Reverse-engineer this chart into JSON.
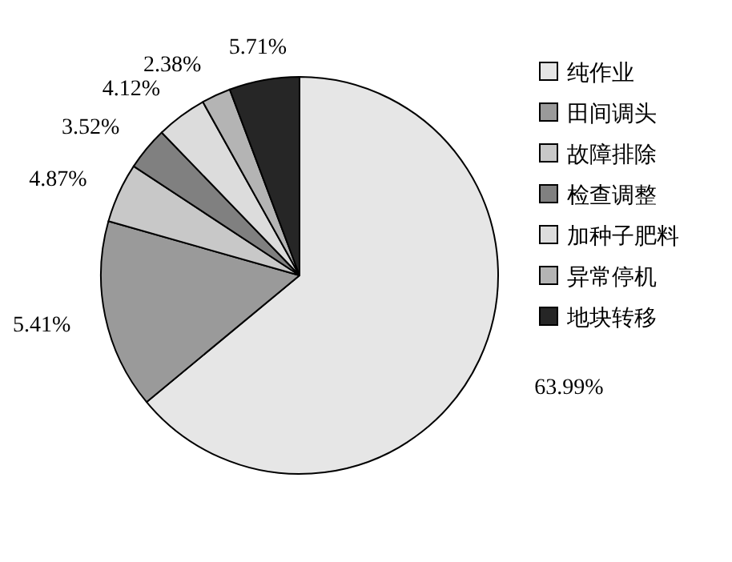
{
  "chart_data": {
    "type": "pie",
    "categories": [
      "纯作业",
      "田间调头",
      "故障排除",
      "检查调整",
      "加种子肥料",
      "异常停机",
      "地块转移"
    ],
    "values": [
      63.99,
      15.41,
      4.87,
      3.52,
      4.12,
      2.38,
      5.71
    ],
    "value_labels": [
      "63.99%",
      null,
      "4.87%",
      "3.52%",
      "4.12%",
      "2.38%",
      "5.71%"
    ],
    "annotations": [
      "5.41%"
    ],
    "colors": [
      "#e6e6e6",
      "#9a9a9a",
      "#c8c8c8",
      "#808080",
      "#dcdcdc",
      "#b4b4b4",
      "#262626"
    ],
    "legend": "right"
  }
}
